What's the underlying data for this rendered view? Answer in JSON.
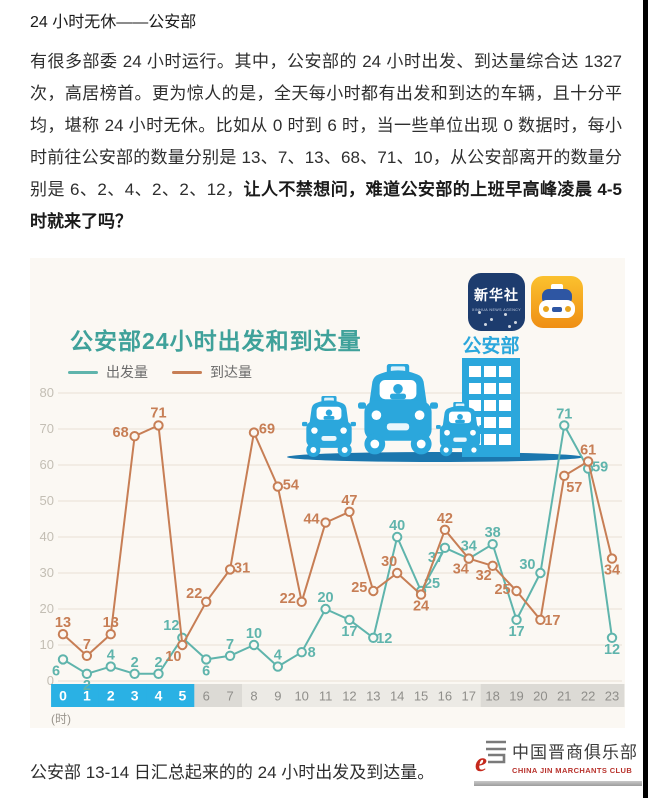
{
  "page": {
    "title": "24 小时无休——公安部",
    "paragraph_normal": "有很多部委 24 小时运行。其中，公安部的 24 小时出发、到达量综合达 1327 次，高居榜首。更为惊人的是，全天每小时都有出发和到达的车辆，且十分平均，堪称 24 小时无休。比如从 0 时到 6 时，当一些单位出现 0 数据时，每小时前往公安部的数量分别是 13、7、13、68、71、10，从公安部离开的数量分别是 6、2、4、2、2、12，",
    "paragraph_bold": "让人不禁想问，难道公安部的上班早高峰凌晨 4-5 时就来了吗？",
    "caption": "公安部 13-14 日汇总起来的的 24 小时出发及到达量。"
  },
  "icons": {
    "xinhua_title": "新华社",
    "xinhua_sub": "XINHUA NEWS AGENCY"
  },
  "illustration": {
    "building_label": "公安部"
  },
  "watermark": {
    "cn": "中国晋商俱乐部",
    "en": "CHINA JIN MARCHANTS CLUB"
  },
  "chart_data": {
    "type": "line",
    "title": "公安部24小时出发和到达量",
    "xlabel": "(时)",
    "x": [
      0,
      1,
      2,
      3,
      4,
      5,
      6,
      7,
      8,
      9,
      10,
      11,
      12,
      13,
      14,
      15,
      16,
      17,
      18,
      19,
      20,
      21,
      22,
      23
    ],
    "ylim": [
      0,
      80
    ],
    "yticks": [
      0,
      10,
      20,
      30,
      40,
      50,
      60,
      70,
      80
    ],
    "grid": true,
    "legend_position": "top-left",
    "series": [
      {
        "name": "出发量",
        "color": "#5FB4AC",
        "values": [
          6,
          2,
          4,
          2,
          2,
          12,
          6,
          7,
          10,
          4,
          8,
          20,
          17,
          12,
          40,
          25,
          37,
          34,
          38,
          17,
          30,
          71,
          59,
          12
        ],
        "label_dx": [
          -7,
          0,
          0,
          0,
          0,
          -11,
          0,
          0,
          0,
          0,
          10,
          0,
          0,
          11,
          0,
          11,
          -9,
          0,
          0,
          0,
          -13,
          0,
          12,
          0
        ],
        "label_dy": [
          16,
          16,
          -7,
          -7,
          -7,
          -8,
          16,
          -7,
          -7,
          -7,
          5,
          -7,
          16,
          5,
          -7,
          -3,
          14,
          -8,
          -7,
          16,
          -4,
          -7,
          3,
          16
        ]
      },
      {
        "name": "到达量",
        "color": "#C77E55",
        "values": [
          13,
          7,
          13,
          68,
          71,
          10,
          22,
          31,
          69,
          54,
          22,
          44,
          47,
          25,
          30,
          24,
          42,
          34,
          32,
          25,
          17,
          57,
          61,
          34
        ],
        "label_dx": [
          0,
          0,
          0,
          -14,
          0,
          -9,
          -12,
          12,
          13,
          13,
          -14,
          -14,
          0,
          -14,
          -8,
          0,
          0,
          -8,
          -9,
          -14,
          12,
          10,
          0,
          0
        ],
        "label_dy": [
          -7,
          -7,
          -7,
          1,
          -8,
          16,
          -4,
          3,
          1,
          3,
          1,
          1,
          -7,
          1,
          -7,
          16,
          -7,
          15,
          14,
          3,
          5,
          16,
          -7,
          16
        ]
      }
    ],
    "x_bands": [
      {
        "from": 0,
        "to": 5,
        "bg": "#2AB1E4",
        "fg": "#FFFFFF",
        "bold": true
      },
      {
        "from": 6,
        "to": 7,
        "bg": "#DCDAD5",
        "fg": "#8F8E8A",
        "bold": false
      },
      {
        "from": 8,
        "to": 17,
        "bg": "#ECEAE5",
        "fg": "#8F8E8A",
        "bold": false
      },
      {
        "from": 18,
        "to": 23,
        "bg": "#DCDAD5",
        "fg": "#8F8E8A",
        "bold": false
      }
    ],
    "colors": {
      "chart_bg": "#FBF8F3",
      "gridline": "#E9E1D6",
      "ytick": "#C3BEB4",
      "title": "#3FA19A",
      "illustration_blue": "#2BA7DC",
      "ground_blue": "#1B77AE"
    }
  }
}
